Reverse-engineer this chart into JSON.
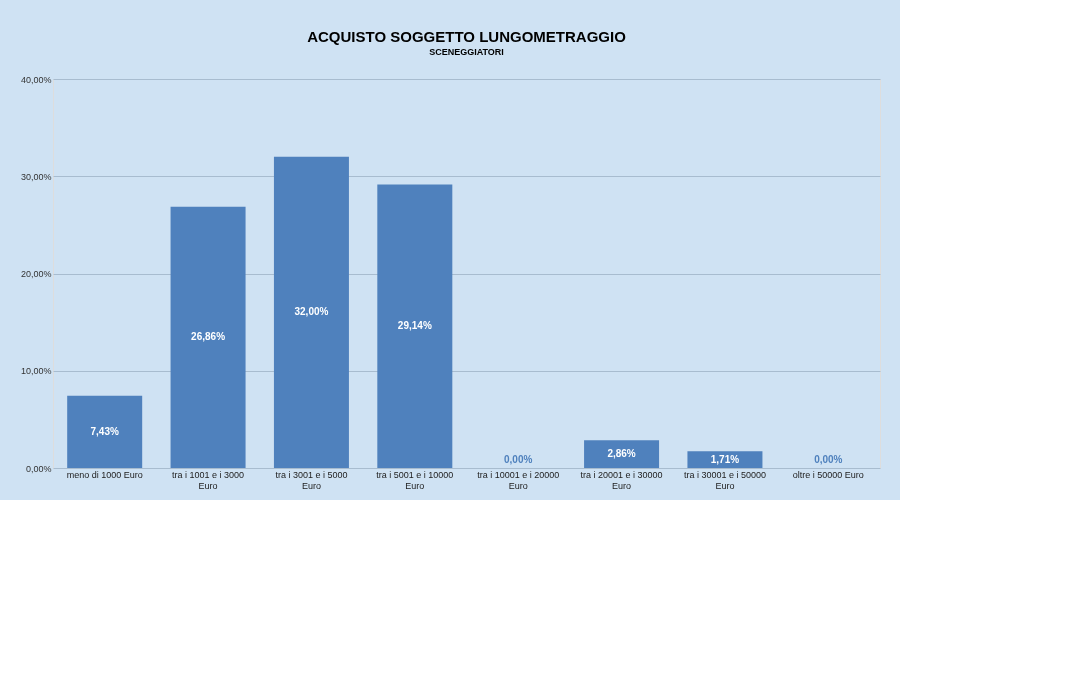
{
  "chart_data": {
    "type": "bar",
    "title": "ACQUISTO SOGGETTO LUNGOMETRAGGIO",
    "subtitle": "SCENEGGIATORI",
    "categories": [
      "meno di 1000 Euro",
      "tra i 1001 e i 3000 Euro",
      "tra i 3001 e i 5000 Euro",
      "tra i 5001 e i 10000 Euro",
      "tra i 10001 e i 20000 Euro",
      "tra i 20001 e i 30000 Euro",
      "tra i 30001 e i 50000 Euro",
      "oltre i 50000 Euro"
    ],
    "values": [
      7.43,
      26.86,
      32.0,
      29.14,
      0.0,
      2.86,
      1.71,
      0.0
    ],
    "value_labels": [
      "7,43%",
      "26,86%",
      "32,00%",
      "29,14%",
      "0,00%",
      "2,86%",
      "1,71%",
      "0,00%"
    ],
    "color": "#4f81bd",
    "ylim": [
      0,
      40
    ],
    "yticks": [
      {
        "value": 0,
        "label": "0,00%"
      },
      {
        "value": 10,
        "label": "10,00%"
      },
      {
        "value": 20,
        "label": "20,00%"
      },
      {
        "value": 30,
        "label": "30,00%"
      },
      {
        "value": 40,
        "label": "40,00%"
      }
    ],
    "grid": "y"
  }
}
